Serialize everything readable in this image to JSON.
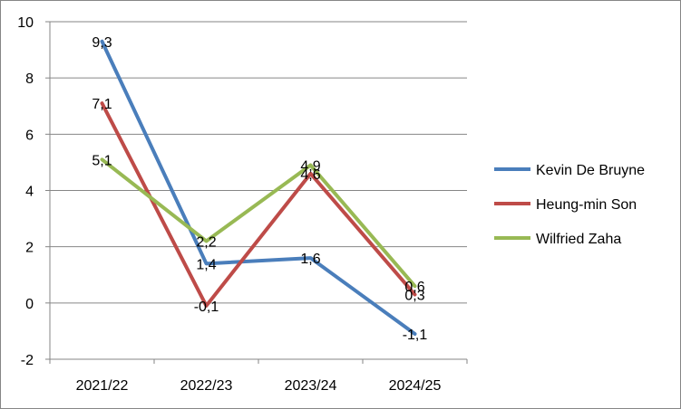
{
  "chart_data": {
    "type": "line",
    "title": "",
    "xlabel": "",
    "ylabel": "",
    "categories": [
      "2021/22",
      "2022/23",
      "2023/24",
      "2024/25"
    ],
    "ylim": [
      -2,
      10
    ],
    "yticks": [
      -2,
      0,
      2,
      4,
      6,
      8,
      10
    ],
    "grid": "horizontal",
    "legend_position": "right",
    "series": [
      {
        "name": "Kevin De Bruyne",
        "color": "#4A7EBB",
        "values": [
          9.3,
          1.4,
          1.6,
          -1.1
        ],
        "labels": [
          "9,3",
          "1,4",
          "1,6",
          "-1,1"
        ]
      },
      {
        "name": "Heung-min Son",
        "color": "#BE4B48",
        "values": [
          7.1,
          -0.1,
          4.6,
          0.3
        ],
        "labels": [
          "7,1",
          "-0,1",
          "4,6",
          "0,3"
        ]
      },
      {
        "name": "Wilfried Zaha",
        "color": "#98B954",
        "values": [
          5.1,
          2.2,
          4.9,
          0.6
        ],
        "labels": [
          "5,1",
          "2,2",
          "4,9",
          "0,6"
        ]
      }
    ]
  }
}
